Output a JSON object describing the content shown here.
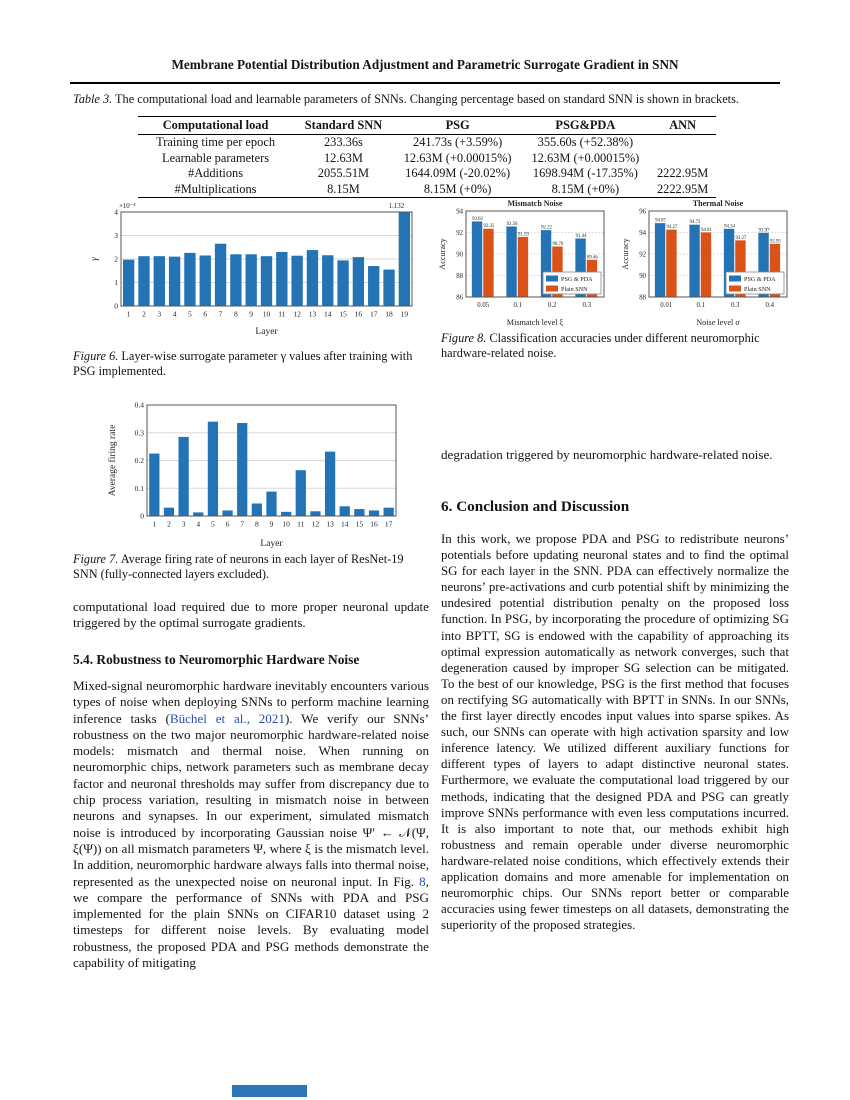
{
  "header": {
    "title": "Membrane Potential Distribution Adjustment and Parametric Surrogate Gradient in SNN"
  },
  "table3": {
    "label": "Table 3.",
    "caption": "The computational load and learnable parameters of SNNs. Changing percentage based on standard SNN is shown in brackets.",
    "headers": [
      "Computational load",
      "Standard SNN",
      "PSG",
      "PSG&PDA",
      "ANN"
    ],
    "rows": [
      [
        "Training time per epoch",
        "233.36s",
        "241.73s (+3.59%)",
        "355.60s (+52.38%)",
        ""
      ],
      [
        "Learnable parameters",
        "12.63M",
        "12.63M (+0.00015%)",
        "12.63M (+0.00015%)",
        ""
      ],
      [
        "#Additions",
        "2055.51M",
        "1644.09M (-20.02%)",
        "1698.94M (-17.35%)",
        "2222.95M"
      ],
      [
        "#Multiplications",
        "8.15M",
        "8.15M (+0%)",
        "8.15M (+0%)",
        "2222.95M"
      ]
    ]
  },
  "figures": {
    "fig6": {
      "label": "Figure 6.",
      "caption": "Layer-wise surrogate parameter γ values after training with PSG implemented."
    },
    "fig7": {
      "label": "Figure 7.",
      "caption": "Average firing rate of neurons in each layer of ResNet-19 SNN (fully-connected layers excluded)."
    },
    "fig8": {
      "label": "Figure 8.",
      "caption": "Classification accuracies under different neuromorphic hardware-related noise."
    }
  },
  "left_column": {
    "para_continuation": "computational load required due to more proper neuronal update triggered by the optimal surrogate gradients.",
    "section54_heading": "5.4. Robustness to Neuromorphic Hardware Noise",
    "section54_segments": [
      {
        "t": "Mixed-signal neuromorphic hardware inevitably encounters various types of noise when deploying SNNs to perform machine learning inference tasks ("
      },
      {
        "t": "Büchel et al., 2021",
        "link": true
      },
      {
        "t": "). We verify our SNNs’ robustness on the two major neuromorphic hardware-related noise models: mismatch and thermal noise. When running on neuromorphic chips, network parameters such as membrane decay factor and neuronal thresholds may suffer from discrepancy due to chip process variation, resulting in mismatch noise in between neurons and synapses. In our experiment, simulated mismatch noise is introduced by incorporating Gaussian noise Ψ′ ← 𝒩(Ψ, ξ(Ψ)) on all mismatch parameters Ψ, where ξ is the mismatch level. In addition, neuromorphic hardware always falls into thermal noise, represented as the unexpected noise on neuronal input. In Fig. "
      },
      {
        "t": "8",
        "link": true
      },
      {
        "t": ", we compare the performance of SNNs with PDA and PSG implemented for the plain SNNs on CIFAR10 dataset using 2 timesteps for different noise levels. By evaluating model robustness, the proposed PDA and PSG methods demonstrate the capability of mitigating"
      }
    ]
  },
  "right_column": {
    "para_continuation": "degradation triggered by neuromorphic hardware-related noise.",
    "section6_heading": "6. Conclusion and Discussion",
    "conclusion": "In this work, we propose PDA and PSG to redistribute neurons’ potentials before updating neuronal states and to find the optimal SG for each layer in the SNN. PDA can effectively normalize the neurons’ pre-activations and curb potential shift by minimizing the undesired potential distribution penalty on the proposed loss function. In PSG, by incorporating the procedure of optimizing SG into BPTT, SG is endowed with the capability of approaching its optimal expression automatically as network converges, such that degeneration caused by improper SG selection can be mitigated. To the best of our knowledge, PSG is the first method that focuses on rectifying SG automatically with BPTT in SNNs. In our SNNs, the first layer directly encodes input values into sparse spikes. As such, our SNNs can operate with high activation sparsity and low inference latency. We utilized different auxiliary functions for different types of layers to adapt distinctive neuronal states. Furthermore, we evaluate the computational load triggered by our methods, indicating that the designed PDA and PSG can greatly improve SNNs performance with even less computations incurred. It is also important to note that, our methods exhibit high robustness and remain operable under diverse neuromorphic hardware-related noise conditions, which effectively extends their application domains and more amenable for implementation on neuromorphic chips. Our SNNs report better or comparable accuracies using fewer timesteps on all datasets, demonstrating the superiority of the proposed strategies."
  },
  "colors": {
    "bar_blue": "#2373b5",
    "bar_orange": "#d95319",
    "link": "#2a4db5"
  },
  "chart_data": [
    {
      "type": "bar",
      "categories": [
        "1",
        "2",
        "3",
        "4",
        "5",
        "6",
        "7",
        "8",
        "9",
        "10",
        "11",
        "12",
        "13",
        "14",
        "15",
        "16",
        "17",
        "18",
        "19"
      ],
      "values": [
        1.97,
        2.12,
        2.12,
        2.1,
        2.26,
        2.15,
        2.65,
        2.2,
        2.2,
        2.12,
        2.3,
        2.14,
        2.38,
        2.16,
        1.94,
        2.08,
        1.7,
        1.55,
        11.32
      ],
      "color": "#2373b5",
      "ylim": [
        0,
        4
      ],
      "yticks": [
        0,
        1,
        2,
        3,
        4
      ],
      "scale_note": "×10⁻⁴",
      "annotation": {
        "index": 18,
        "text": "1.132",
        "dx": 8
      },
      "xlabel": "Layer",
      "ylabel": "γ",
      "ylabel_italic": true,
      "grid": true,
      "note": "Bar 19 value 1.132e-3 is clipped by the axis limit of 4e-4"
    },
    {
      "type": "bar",
      "categories": [
        "1",
        "2",
        "3",
        "4",
        "5",
        "6",
        "7",
        "8",
        "9",
        "10",
        "11",
        "12",
        "13",
        "14",
        "15",
        "16",
        "17"
      ],
      "values": [
        0.225,
        0.03,
        0.285,
        0.013,
        0.34,
        0.02,
        0.335,
        0.045,
        0.088,
        0.015,
        0.165,
        0.017,
        0.232,
        0.035,
        0.025,
        0.02,
        0.03
      ],
      "color": "#2373b5",
      "ylim": [
        0,
        0.4
      ],
      "yticks": [
        0,
        0.1,
        0.2,
        0.3,
        0.4
      ],
      "xlabel": "Layer",
      "ylabel": "Average firing rate",
      "grid": true
    },
    {
      "type": "bar",
      "title": "Mismatch Noise",
      "categories": [
        "0.05",
        "0.1",
        "0.2",
        "0.3"
      ],
      "series": [
        {
          "name": "PSG & PDA",
          "color": "#2373b5",
          "values": [
            93.03,
            92.56,
            92.22,
            91.44
          ],
          "labels": [
            "93.03",
            "92.56",
            "92.22",
            "91.44"
          ]
        },
        {
          "name": "Plain SNN",
          "color": "#d95319",
          "values": [
            92.35,
            91.59,
            90.7,
            89.46
          ],
          "labels": [
            "92.35",
            "91.59",
            "90.70",
            "89.46"
          ]
        }
      ],
      "ylim": [
        86,
        94
      ],
      "yticks": [
        86,
        88,
        90,
        92,
        94
      ],
      "xlabel": "Mismatch level ξ",
      "ylabel": "Accuracy",
      "bar_labels": true,
      "legend": "bottom-right",
      "grid": true,
      "grid_dash": true
    },
    {
      "type": "bar",
      "title": "Thermal Noise",
      "categories": [
        "0.01",
        "0.1",
        "0.3",
        "0.4"
      ],
      "series": [
        {
          "name": "PSG & PDA",
          "color": "#2373b5",
          "values": [
            94.87,
            94.73,
            94.34,
            93.97
          ],
          "labels": [
            "94.87",
            "94.73",
            "94.34",
            "93.97"
          ]
        },
        {
          "name": "Plain SNN",
          "color": "#d95319",
          "values": [
            94.27,
            94.01,
            93.27,
            92.95
          ],
          "labels": [
            "94.27",
            "94.01",
            "93.27",
            "92.95"
          ]
        }
      ],
      "ylim": [
        88,
        96
      ],
      "yticks": [
        88,
        90,
        92,
        94,
        96
      ],
      "xlabel": "Noise level σ",
      "ylabel": "Accuracy",
      "bar_labels": true,
      "legend": "bottom-right",
      "grid": true,
      "grid_dash": true
    }
  ]
}
